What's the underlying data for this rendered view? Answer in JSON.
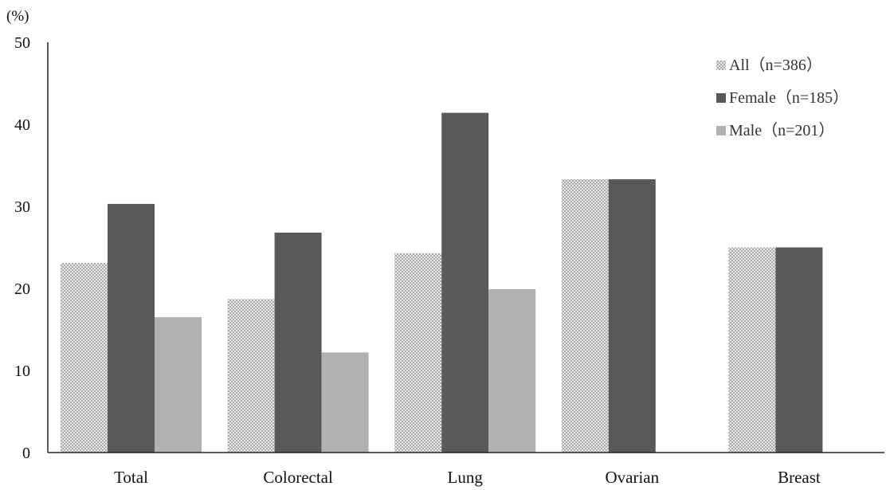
{
  "chart_data": {
    "type": "bar",
    "title": "",
    "ylabel": "(%)",
    "xlabel": "",
    "ylim": [
      0,
      50
    ],
    "yticks": [
      0,
      10,
      20,
      30,
      40,
      50
    ],
    "grid": false,
    "legend_position": "top-right",
    "categories": [
      "Total",
      "Colorectal",
      "Lung",
      "Ovarian",
      "Breast"
    ],
    "series": [
      {
        "name": "All（n=386）",
        "values": [
          23.1,
          18.7,
          24.3,
          33.3,
          25.0
        ],
        "color": "#c9c9c9",
        "pattern": "crosshatch"
      },
      {
        "name": "Female（n=185）",
        "values": [
          30.3,
          26.8,
          41.4,
          33.3,
          25.0
        ],
        "color": "#595959"
      },
      {
        "name": "Male（n=201）",
        "values": [
          16.5,
          12.2,
          19.9,
          null,
          null
        ],
        "color": "#b3b0b0"
      }
    ]
  }
}
